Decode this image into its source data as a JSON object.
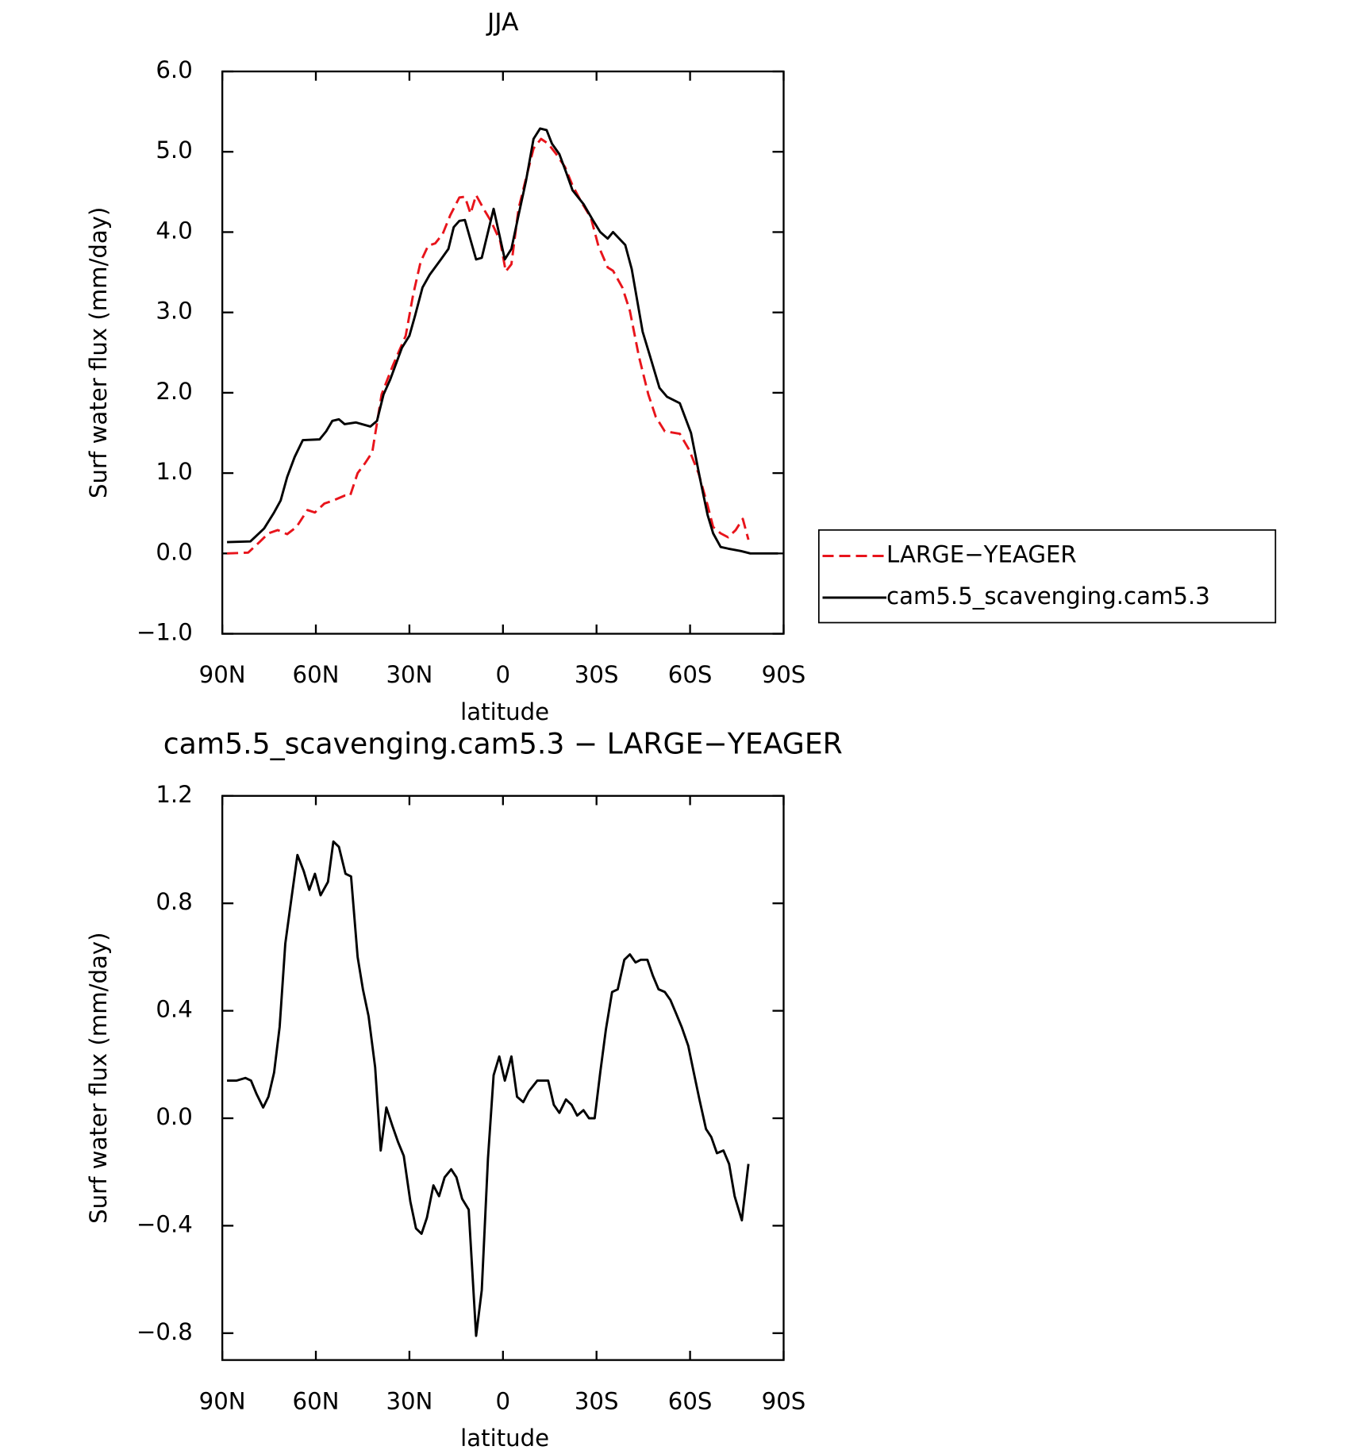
{
  "chart_data": [
    {
      "type": "line",
      "title": "JJA",
      "x_label": "latitude",
      "y_label": "Surf water flux (mm/day)",
      "xlim": [
        90,
        -90
      ],
      "xticks": [
        {
          "value": 90,
          "label": "90N"
        },
        {
          "value": 60,
          "label": "60N"
        },
        {
          "value": 30,
          "label": "30N"
        },
        0,
        {
          "value": -30,
          "label": "30S"
        },
        {
          "value": -60,
          "label": "60S"
        },
        {
          "value": -90,
          "label": "90S"
        }
      ],
      "ylim": [
        -1,
        6
      ],
      "yticks": [
        {
          "value": -1,
          "label": "−1.0"
        },
        {
          "value": 0,
          "label": "0.0"
        },
        {
          "value": 1,
          "label": "1.0"
        },
        {
          "value": 2,
          "label": "2.0"
        },
        {
          "value": 3,
          "label": "3.0"
        },
        {
          "value": 4,
          "label": "4.0"
        },
        {
          "value": 5,
          "label": "5.0"
        },
        {
          "value": 6,
          "label": "6.0"
        }
      ],
      "legend": "right",
      "series": [
        {
          "name": "LARGE−YEAGER",
          "color": "#e8141b",
          "dashed": true,
          "x": [
            88.5,
            81.7,
            78.1,
            75.2,
            72.2,
            69.2,
            66.2,
            62.7,
            60.3,
            57.3,
            54.4,
            50.8,
            49,
            46.6,
            44.3,
            41.9,
            38.9,
            35.4,
            31.2,
            28.8,
            26.4,
            24,
            21.7,
            19.3,
            16.9,
            14,
            12.2,
            10.4,
            8.6,
            6.2,
            3.9,
            0.9,
            -0.9,
            -2.7,
            -5,
            -7.4,
            -9.8,
            -12.2,
            -14.5,
            -16.9,
            -19.9,
            -22.3,
            -25.2,
            -28.2,
            -30.6,
            -33.6,
            -35.3,
            -38.3,
            -40.7,
            -43.6,
            -46.6,
            -49,
            -51.9,
            -56.7,
            -59.7,
            -62.7,
            -65.6,
            -67.4,
            -69.8,
            -72.2,
            -74.6,
            -76.9,
            -78.7
          ],
          "values": [
            0,
            0.01,
            0.14,
            0.25,
            0.29,
            0.24,
            0.33,
            0.54,
            0.51,
            0.62,
            0.66,
            0.72,
            0.72,
            1.0,
            1.12,
            1.26,
            1.98,
            2.33,
            2.71,
            3.22,
            3.63,
            3.83,
            3.86,
            3.98,
            4.21,
            4.43,
            4.44,
            4.23,
            4.46,
            4.29,
            4.14,
            3.89,
            3.51,
            3.6,
            4.29,
            4.67,
            5.04,
            5.16,
            5.1,
            4.98,
            4.81,
            4.58,
            4.37,
            4.18,
            3.83,
            3.56,
            3.52,
            3.31,
            3.02,
            2.45,
            1.98,
            1.7,
            1.52,
            1.49,
            1.29,
            1.0,
            0.6,
            0.33,
            0.25,
            0.2,
            0.29,
            0.43,
            0.17
          ]
        },
        {
          "name": "cam5.5_scavenging.cam5.3",
          "color": "#000000",
          "dashed": false,
          "x": [
            88.5,
            81,
            79.6,
            76.6,
            73.4,
            71.3,
            69.2,
            66.8,
            64.2,
            58.8,
            56.7,
            54.7,
            52.6,
            50.8,
            47.2,
            42.5,
            40.4,
            38.3,
            36.2,
            32.4,
            30,
            28.2,
            25.8,
            23.5,
            19.9,
            17.5,
            15.8,
            14,
            12.2,
            8.6,
            6.8,
            3,
            -0.6,
            -2.7,
            -5,
            -7.4,
            -9.8,
            -11.9,
            -14,
            -15.7,
            -18.1,
            -20.2,
            -22.3,
            -25.8,
            -28.8,
            -31.2,
            -33.6,
            -35.3,
            -39.2,
            -41.3,
            -44.8,
            -47.2,
            -50.2,
            -52.6,
            -56.7,
            -60.3,
            -63.3,
            -65.6,
            -67.4,
            -69.8,
            -72.2,
            -76.3,
            -79.3,
            -85.2,
            -88.2
          ],
          "values": [
            0.14,
            0.15,
            0.2,
            0.31,
            0.51,
            0.66,
            0.95,
            1.2,
            1.41,
            1.42,
            1.52,
            1.65,
            1.67,
            1.61,
            1.63,
            1.58,
            1.65,
            1.98,
            2.16,
            2.56,
            2.71,
            2.96,
            3.31,
            3.47,
            3.66,
            3.79,
            4.06,
            4.14,
            4.15,
            3.66,
            3.68,
            4.29,
            3.66,
            3.79,
            4.21,
            4.64,
            5.16,
            5.29,
            5.27,
            5.1,
            4.97,
            4.75,
            4.52,
            4.35,
            4.15,
            4.0,
            3.92,
            4.0,
            3.84,
            3.54,
            2.76,
            2.45,
            2.06,
            1.95,
            1.87,
            1.5,
            0.91,
            0.48,
            0.25,
            0.08,
            0.06,
            0.03,
            0,
            0,
            0
          ]
        }
      ]
    },
    {
      "type": "line",
      "title": "cam5.5_scavenging.cam5.3 − LARGE−YEAGER",
      "x_label": "latitude",
      "y_label": "Surf water flux (mm/day)",
      "xlim": [
        90,
        -90
      ],
      "xticks": [
        {
          "value": 90,
          "label": "90N"
        },
        {
          "value": 60,
          "label": "60N"
        },
        {
          "value": 30,
          "label": "30N"
        },
        0,
        {
          "value": -30,
          "label": "30S"
        },
        {
          "value": -60,
          "label": "60S"
        },
        {
          "value": -90,
          "label": "90S"
        }
      ],
      "ylim": [
        -0.9,
        1.2
      ],
      "yticks": [
        {
          "value": -0.8,
          "label": "−0.8"
        },
        {
          "value": -0.4,
          "label": "−0.4"
        },
        {
          "value": 0,
          "label": "0.0"
        },
        0.4,
        0.8,
        1.2
      ],
      "series": [
        {
          "color": "#000000",
          "dashed": false,
          "x": [
            88.5,
            85.5,
            82.6,
            80.8,
            79,
            76.9,
            75.2,
            73.4,
            71.6,
            69.8,
            67.7,
            65.9,
            63.9,
            62.1,
            60.3,
            58.5,
            56.1,
            54.4,
            52.6,
            50.5,
            48.7,
            46.6,
            44.9,
            43.1,
            41,
            39.2,
            37.4,
            35.4,
            33.6,
            31.8,
            29.7,
            27.9,
            26.1,
            24.4,
            22.3,
            20.5,
            18.7,
            16.6,
            14.9,
            13.1,
            11,
            8.6,
            6.8,
            4.8,
            3,
            1.2,
            -0.6,
            -2.7,
            -4.5,
            -6.5,
            -8.3,
            -11,
            -14.5,
            -16.3,
            -18.1,
            -20.2,
            -22,
            -23.8,
            -25.8,
            -27.6,
            -29.4,
            -31.2,
            -33,
            -35,
            -36.8,
            -38.9,
            -40.7,
            -42.5,
            -44.2,
            -46.3,
            -48.1,
            -49.9,
            -51.9,
            -53.7,
            -55.5,
            -57.3,
            -59.4,
            -61.2,
            -63,
            -65.1,
            -66.8,
            -68.6,
            -70.7,
            -72.5,
            -74.3,
            -76.6,
            -78.7
          ],
          "values": [
            0.14,
            0.14,
            0.15,
            0.14,
            0.09,
            0.04,
            0.08,
            0.17,
            0.34,
            0.65,
            0.83,
            0.98,
            0.92,
            0.85,
            0.91,
            0.83,
            0.88,
            1.03,
            1.01,
            0.91,
            0.9,
            0.6,
            0.48,
            0.38,
            0.19,
            -0.12,
            0.04,
            -0.03,
            -0.09,
            -0.14,
            -0.31,
            -0.41,
            -0.43,
            -0.37,
            -0.25,
            -0.29,
            -0.22,
            -0.19,
            -0.22,
            -0.3,
            -0.34,
            -0.81,
            -0.64,
            -0.15,
            0.16,
            0.23,
            0.14,
            0.23,
            0.08,
            0.06,
            0.1,
            0.14,
            0.14,
            0.05,
            0.02,
            0.07,
            0.05,
            0.01,
            0.03,
            0,
            0,
            0.17,
            0.33,
            0.47,
            0.48,
            0.59,
            0.61,
            0.58,
            0.59,
            0.59,
            0.53,
            0.48,
            0.47,
            0.44,
            0.39,
            0.34,
            0.27,
            0.17,
            0.07,
            -0.04,
            -0.07,
            -0.13,
            -0.12,
            -0.17,
            -0.29,
            -0.38,
            -0.17
          ]
        }
      ]
    }
  ]
}
